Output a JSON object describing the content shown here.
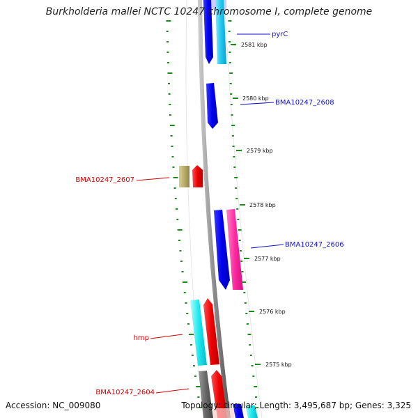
{
  "title": "Burkholderia mallei NCTC 10247 chromosome I, complete genome",
  "footer": {
    "accession": "Accession: NC_009080",
    "summary": "Topology: circular; Length: 3,495,687 bp; Genes: 3,325"
  },
  "ticks": [
    {
      "label": "2581 kbp"
    },
    {
      "label": "2580 kbp"
    },
    {
      "label": "2579 kbp"
    },
    {
      "label": "2578 kbp"
    },
    {
      "label": "2577 kbp"
    },
    {
      "label": "2576 kbp"
    },
    {
      "label": "2575 kbp"
    }
  ],
  "gene_labels": [
    {
      "name": "pyrC",
      "color": "#1010cc"
    },
    {
      "name": "BMA10247_2608",
      "color": "#1010cc"
    },
    {
      "name": "BMA10247_2607",
      "color": "#cc0000"
    },
    {
      "name": "BMA10247_2606",
      "color": "#1010cc"
    },
    {
      "name": "hmp",
      "color": "#cc0000"
    },
    {
      "name": "BMA10247_2604",
      "color": "#cc0000"
    }
  ],
  "colors": {
    "backbone": "#8c8c8c",
    "ticks_green": "#1a8a1a",
    "forward_blue": "#0a0ae6",
    "light_blue": "#33ccee",
    "cyan": "#18e6e6",
    "red": "#ee0000",
    "magenta": "#ff2aa0",
    "khaki": "#b8ad6a",
    "gray": "#666666",
    "reverse_label": "#cc0000",
    "forward_label": "#1010cc"
  }
}
